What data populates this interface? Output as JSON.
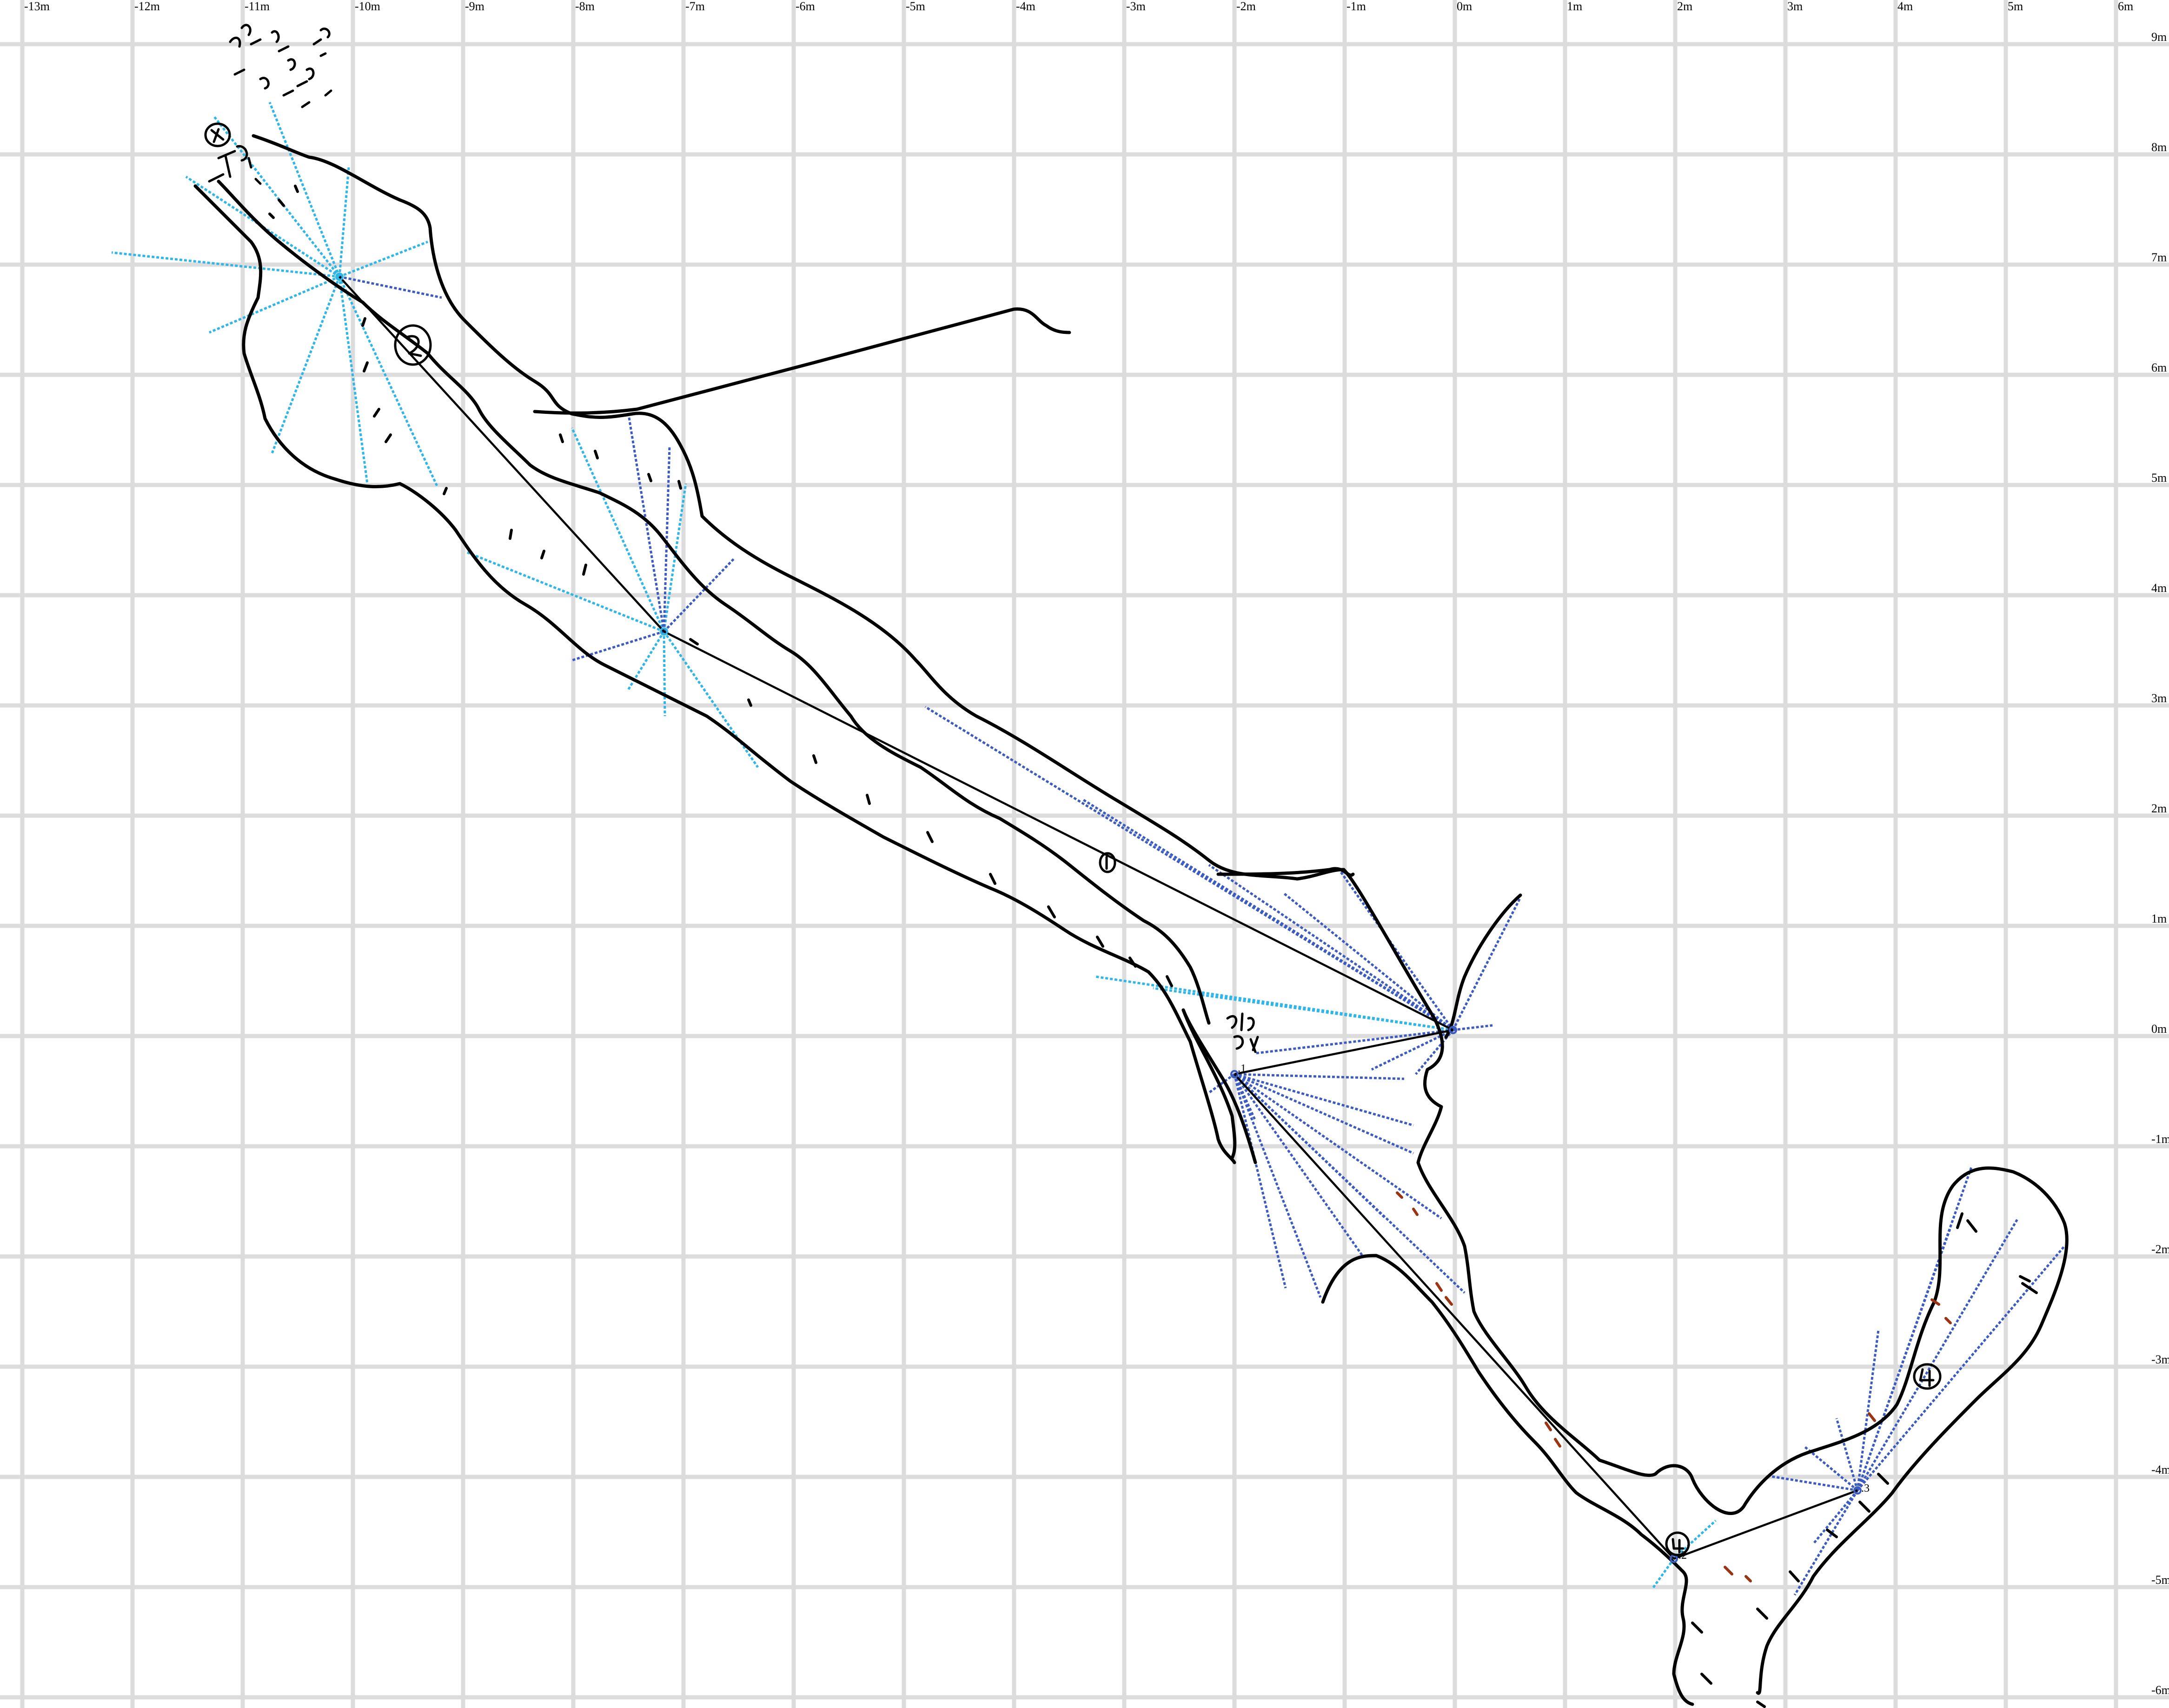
{
  "map": {
    "grid_unit": "m",
    "x_labels": [
      "-13m",
      "-12m",
      "-11m",
      "-10m",
      "-9m",
      "-8m",
      "-7m",
      "-6m",
      "-5m",
      "-4m",
      "-3m",
      "-2m",
      "-1m",
      "0m",
      "1m",
      "2m",
      "3m",
      "4m",
      "5m",
      "6m"
    ],
    "y_labels": [
      "9m",
      "8m",
      "7m",
      "6m",
      "5m",
      "4m",
      "3m",
      "2m",
      "1m",
      "0m",
      "-1m",
      "-2m",
      "-3m",
      "-4m",
      "-5m",
      "-6m"
    ],
    "stations": [
      {
        "id": "s1",
        "label": ".1",
        "x": -2.0,
        "y": -0.4
      },
      {
        "id": "s2",
        "label": ".2",
        "x": 2.0,
        "y": -4.8
      },
      {
        "id": "s3",
        "label": ".3",
        "x": 3.7,
        "y": -4.3
      }
    ],
    "handwritten_notes": [
      "Sloping floor",
      "TOP of slope",
      "Lots of rocks on floor"
    ],
    "colors": {
      "grid": "#dcdcdc",
      "wall": "#000000",
      "splay_light": "#2fb6e8",
      "splay_dark": "#3b5bc0",
      "detail_brown": "#9a3412"
    }
  }
}
